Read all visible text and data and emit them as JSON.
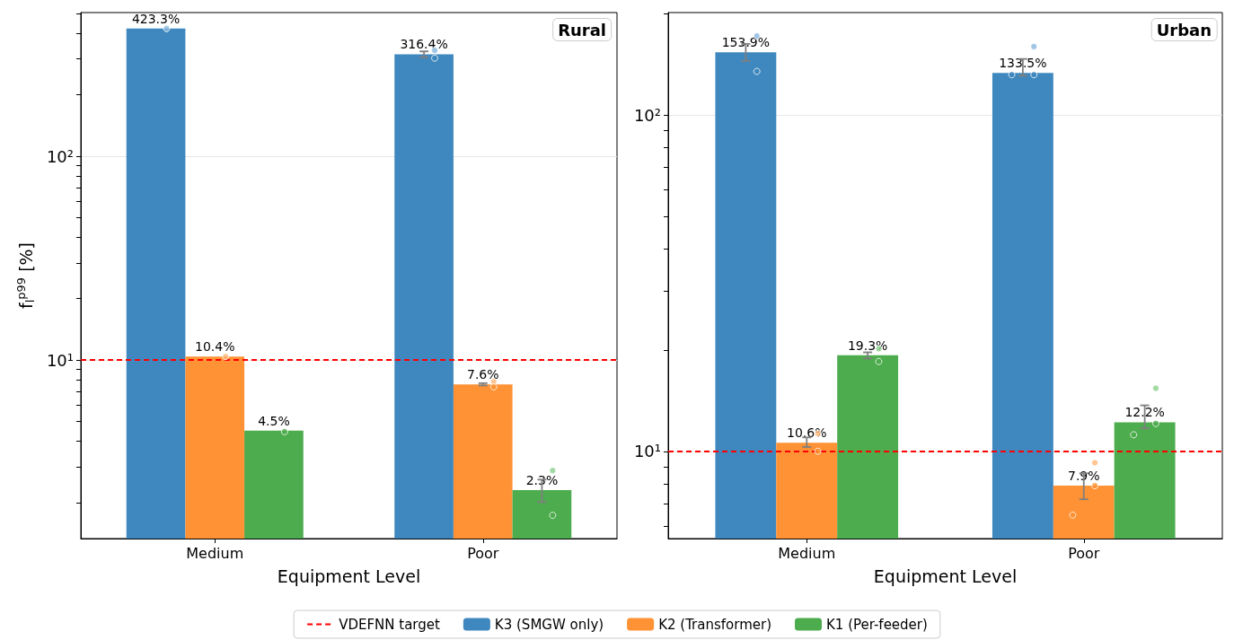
{
  "chart_data": [
    {
      "type": "bar",
      "title": "Rural",
      "xlabel": "Equipment Level",
      "ylabel": "f$_{l}$$^{p99}$ [%]",
      "categories": [
        "Medium",
        "Poor"
      ],
      "log": "y",
      "ylim": [
        1.33,
        507
      ],
      "yticks": [
        {
          "value": 2,
          "label": null
        },
        {
          "value": 3,
          "label": null
        },
        {
          "value": 4,
          "label": null
        },
        {
          "value": 5,
          "label": null
        },
        {
          "value": 6,
          "label": null
        },
        {
          "value": 7,
          "label": null
        },
        {
          "value": 8,
          "label": null
        },
        {
          "value": 9,
          "label": null
        },
        {
          "value": 10,
          "label": "10¹"
        },
        {
          "value": 20,
          "label": null
        },
        {
          "value": 30,
          "label": null
        },
        {
          "value": 40,
          "label": null
        },
        {
          "value": 50,
          "label": null
        },
        {
          "value": 60,
          "label": null
        },
        {
          "value": 70,
          "label": null
        },
        {
          "value": 80,
          "label": null
        },
        {
          "value": 90,
          "label": null
        },
        {
          "value": 100,
          "label": "10²"
        },
        {
          "value": 200,
          "label": null
        },
        {
          "value": 300,
          "label": null
        },
        {
          "value": 400,
          "label": null
        },
        {
          "value": 500,
          "label": null
        }
      ],
      "grid": "y",
      "legend": "bottom",
      "ref_lines": [
        {
          "axis": "y",
          "value": 10,
          "label": "VDEFNN target",
          "color": "#ff0000",
          "line_style": "dashed"
        }
      ],
      "series": [
        {
          "name": "K3 (SMGW only)",
          "color": "#3f88bf",
          "values": [
            423.3,
            316.4
          ],
          "value_labels": [
            "423.3%",
            "316.4%"
          ],
          "errors": [
            null,
            [
              306,
              327
            ]
          ]
        },
        {
          "type": "scatter",
          "color": "#8ab8de",
          "x": [
            "Medium",
            "Poor"
          ],
          "values": [
            423,
            331
          ],
          "marker": "circle"
        },
        {
          "type": "scatter",
          "color": "#3f88bf",
          "x": [
            "Poor"
          ],
          "values": [
            303
          ],
          "marker": "circle"
        },
        {
          "name": "K2 (Transformer)",
          "color": "#fe9234",
          "values": [
            10.4,
            7.6
          ],
          "value_labels": [
            "10.4%",
            "7.6%"
          ],
          "errors": [
            null,
            [
              7.5,
              7.7
            ]
          ]
        },
        {
          "type": "scatter",
          "color": "#ffb777",
          "x": [
            "Medium",
            "Poor"
          ],
          "values": [
            10.4,
            7.83
          ],
          "marker": "circle"
        },
        {
          "type": "scatter",
          "color": "#fe9234",
          "x": [
            "Poor"
          ],
          "values": [
            7.38
          ],
          "marker": "circle"
        },
        {
          "name": "K1 (Per-feeder)",
          "color": "#4dac4d",
          "values": [
            4.5,
            2.3
          ],
          "value_labels": [
            "4.5%",
            "2.3%"
          ],
          "errors": [
            null,
            [
              2.01,
              2.59
            ]
          ]
        },
        {
          "type": "scatter",
          "color": "#8ccf8c",
          "x": [
            "Poor"
          ],
          "values": [
            2.87
          ],
          "marker": "circle"
        },
        {
          "type": "scatter",
          "color": "#4dac4d",
          "x": [
            "Medium",
            "Poor"
          ],
          "values": [
            4.45,
            1.73
          ],
          "marker": "circle"
        }
      ]
    },
    {
      "type": "bar",
      "title": "Urban",
      "xlabel": "Equipment Level",
      "categories": [
        "Medium",
        "Poor"
      ],
      "log": "y",
      "ylim": [
        5.5,
        202
      ],
      "yticks": [
        {
          "value": 6,
          "label": null
        },
        {
          "value": 7,
          "label": null
        },
        {
          "value": 8,
          "label": null
        },
        {
          "value": 9,
          "label": null
        },
        {
          "value": 10,
          "label": "10¹"
        },
        {
          "value": 20,
          "label": null
        },
        {
          "value": 30,
          "label": null
        },
        {
          "value": 40,
          "label": null
        },
        {
          "value": 50,
          "label": null
        },
        {
          "value": 60,
          "label": null
        },
        {
          "value": 70,
          "label": null
        },
        {
          "value": 80,
          "label": null
        },
        {
          "value": 90,
          "label": null
        },
        {
          "value": 100,
          "label": "10²"
        },
        {
          "value": 200,
          "label": null
        }
      ],
      "grid": "y",
      "legend": "bottom",
      "ref_lines": [
        {
          "axis": "y",
          "value": 10,
          "color": "#ff0000",
          "line_style": "dashed"
        }
      ],
      "series": [
        {
          "name": "K3 (SMGW only)",
          "color": "#3f88bf",
          "values": [
            153.9,
            133.5
          ],
          "value_labels": [
            "153.9%",
            "133.5%"
          ],
          "errors": [
            [
              145,
              163
            ],
            [
              131,
              147
            ]
          ]
        },
        {
          "type": "scatter",
          "color": "#8ab8de",
          "x": [
            "Medium",
            "Poor"
          ],
          "values": [
            172,
            160
          ],
          "marker": "circle"
        },
        {
          "type": "scatter",
          "color": "#3f88bf",
          "x": [
            "Medium",
            "Poor",
            "Poor"
          ],
          "values": [
            135,
            132,
            132
          ],
          "marker": "circle"
        },
        {
          "name": "K2 (Transformer)",
          "color": "#fe9234",
          "values": [
            10.6,
            7.9
          ],
          "value_labels": [
            "10.6%",
            "7.9%"
          ],
          "errors": [
            [
              10.3,
              11.0
            ],
            [
              7.2,
              8.6
            ]
          ]
        },
        {
          "type": "scatter",
          "color": "#ffb777",
          "x": [
            "Medium",
            "Poor"
          ],
          "values": [
            11.3,
            9.25
          ],
          "marker": "circle"
        },
        {
          "type": "scatter",
          "color": "#fe9234",
          "x": [
            "Medium",
            "Poor",
            "Poor"
          ],
          "values": [
            10.0,
            7.9,
            6.46
          ],
          "marker": "circle"
        },
        {
          "name": "K1 (Per-feeder)",
          "color": "#4dac4d",
          "values": [
            19.3,
            12.2
          ],
          "value_labels": [
            "19.3%",
            "12.2%"
          ],
          "errors": [
            [
              18.9,
              19.7
            ],
            [
              11.7,
              13.7
            ]
          ]
        },
        {
          "type": "scatter",
          "color": "#8ccf8c",
          "x": [
            "Medium",
            "Poor"
          ],
          "values": [
            20.2,
            15.4
          ],
          "marker": "circle"
        },
        {
          "type": "scatter",
          "color": "#4dac4d",
          "x": [
            "Medium",
            "Poor",
            "Poor"
          ],
          "values": [
            18.5,
            12.1,
            11.2
          ],
          "marker": "circle"
        }
      ]
    }
  ]
}
